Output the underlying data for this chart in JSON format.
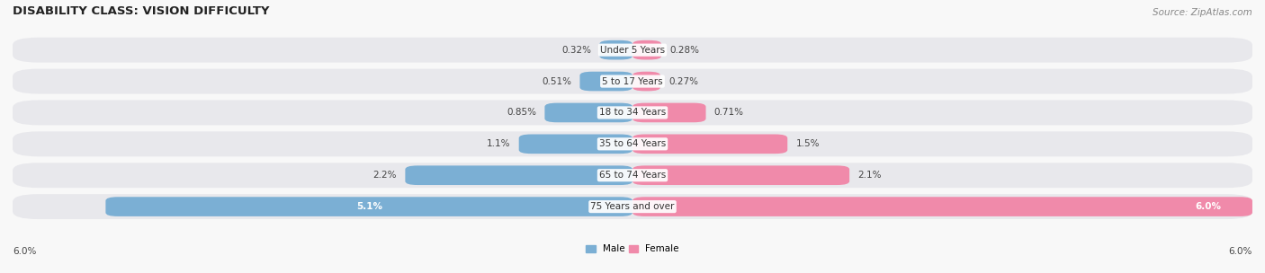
{
  "title": "DISABILITY CLASS: VISION DIFFICULTY",
  "source": "Source: ZipAtlas.com",
  "categories": [
    "Under 5 Years",
    "5 to 17 Years",
    "18 to 34 Years",
    "35 to 64 Years",
    "65 to 74 Years",
    "75 Years and over"
  ],
  "male_values": [
    0.32,
    0.51,
    0.85,
    1.1,
    2.2,
    5.1
  ],
  "female_values": [
    0.28,
    0.27,
    0.71,
    1.5,
    2.1,
    6.0
  ],
  "male_labels": [
    "0.32%",
    "0.51%",
    "0.85%",
    "1.1%",
    "2.2%",
    "5.1%"
  ],
  "female_labels": [
    "0.28%",
    "0.27%",
    "0.71%",
    "1.5%",
    "2.1%",
    "6.0%"
  ],
  "male_color": "#7bafd4",
  "female_color": "#f08aaa",
  "row_bg_color": "#e8e8ec",
  "fig_bg_color": "#f8f8f8",
  "max_val": 6.0,
  "x_axis_label_left": "6.0%",
  "x_axis_label_right": "6.0%",
  "title_fontsize": 9.5,
  "label_fontsize": 7.5,
  "category_fontsize": 7.5,
  "source_fontsize": 7.5
}
